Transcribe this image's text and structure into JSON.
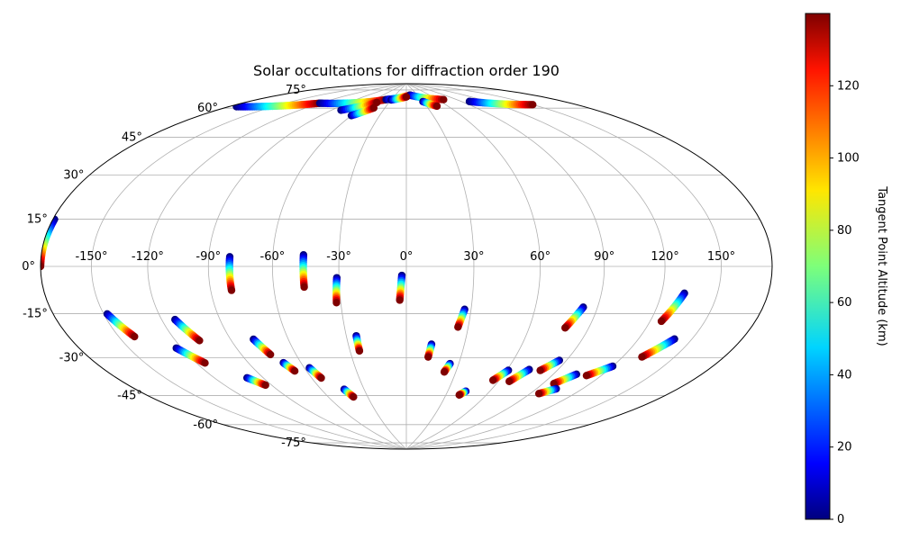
{
  "chart_data": {
    "type": "scatter",
    "projection": "hammer",
    "title": "Solar occultations for diffraction order 190",
    "grid": true,
    "lon_ticks": [
      {
        "value": -150,
        "label": "-150°"
      },
      {
        "value": -120,
        "label": "-120°"
      },
      {
        "value": -90,
        "label": "-90°"
      },
      {
        "value": -60,
        "label": "-60°"
      },
      {
        "value": -30,
        "label": "-30°"
      },
      {
        "value": 0,
        "label": "0°"
      },
      {
        "value": 30,
        "label": "30°"
      },
      {
        "value": 60,
        "label": "60°"
      },
      {
        "value": 90,
        "label": "90°"
      },
      {
        "value": 120,
        "label": "120°"
      },
      {
        "value": 150,
        "label": "150°"
      }
    ],
    "lat_ticks": [
      {
        "value": 75,
        "label": "75°"
      },
      {
        "value": 60,
        "label": "60°"
      },
      {
        "value": 45,
        "label": "45°"
      },
      {
        "value": 30,
        "label": "30°"
      },
      {
        "value": 15,
        "label": "15°"
      },
      {
        "value": 0,
        "label": "0°"
      },
      {
        "value": -15,
        "label": "-15°"
      },
      {
        "value": -30,
        "label": "-30°"
      },
      {
        "value": -45,
        "label": "-45°"
      },
      {
        "value": -60,
        "label": "-60°"
      },
      {
        "value": -75,
        "label": "-75°"
      }
    ],
    "colorbar": {
      "label": "Tangent Point Altitude (km)",
      "colormap": "jet",
      "range": [
        0,
        140
      ],
      "ticks": [
        {
          "value": 0,
          "label": "0"
        },
        {
          "value": 20,
          "label": "20"
        },
        {
          "value": 40,
          "label": "40"
        },
        {
          "value": 60,
          "label": "60"
        },
        {
          "value": 80,
          "label": "80"
        },
        {
          "value": 100,
          "label": "100"
        },
        {
          "value": 120,
          "label": "120"
        }
      ]
    },
    "tracks": [
      {
        "lon0": -179,
        "lat0": 15,
        "lon1": -180,
        "lat1": 0
      },
      {
        "lon0": -148,
        "lat0": -17,
        "lon1": -141,
        "lat1": -26
      },
      {
        "lon0": -123,
        "lat0": -32,
        "lon1": -115,
        "lat1": -39
      },
      {
        "lon0": -113,
        "lat0": -21,
        "lon1": -107,
        "lat1": -30
      },
      {
        "lon0": -100,
        "lat0": -47,
        "lon1": -94,
        "lat1": -51
      },
      {
        "lon0": -80,
        "lat0": 4,
        "lon1": -80,
        "lat1": -10
      },
      {
        "lon0": -78,
        "lat0": -31,
        "lon1": -74,
        "lat1": -38
      },
      {
        "lon0": -70,
        "lat0": -42,
        "lon1": -67,
        "lat1": -46
      },
      {
        "lon0": -57,
        "lat0": -45,
        "lon1": -54,
        "lat1": -50
      },
      {
        "lon0": -46,
        "lat0": 5,
        "lon1": -46,
        "lat1": -9
      },
      {
        "lon0": -44,
        "lat0": -56,
        "lon1": -41,
        "lat1": -60
      },
      {
        "lon0": -31,
        "lat0": -5,
        "lon1": -32,
        "lat1": -16
      },
      {
        "lon0": -25,
        "lat0": -31,
        "lon1": -25,
        "lat1": -38
      },
      {
        "lon0": -2,
        "lat0": -4,
        "lon1": -3,
        "lat1": -15
      },
      {
        "lon0": 13,
        "lat0": -35,
        "lon1": 12,
        "lat1": -41
      },
      {
        "lon0": 27,
        "lat0": -19,
        "lon1": 25,
        "lat1": -27
      },
      {
        "lon0": 25,
        "lat0": -44,
        "lon1": 23,
        "lat1": -48
      },
      {
        "lon0": 43,
        "lat0": -57,
        "lon1": 40,
        "lat1": -59
      },
      {
        "lon0": 61,
        "lat0": -46,
        "lon1": 56,
        "lat1": -51
      },
      {
        "lon0": 73,
        "lat0": -45,
        "lon1": 67,
        "lat1": -51
      },
      {
        "lon0": 83,
        "lat0": -17,
        "lon1": 78,
        "lat1": -26
      },
      {
        "lon0": 86,
        "lat0": -40,
        "lon1": 80,
        "lat1": -45
      },
      {
        "lon0": 104,
        "lat0": -45,
        "lon1": 97,
        "lat1": -50
      },
      {
        "lon0": 103,
        "lat0": -52,
        "lon1": 96,
        "lat1": -55
      },
      {
        "lon0": 120,
        "lat0": -40,
        "lon1": 111,
        "lat1": -45
      },
      {
        "lon0": 132,
        "lat0": -10,
        "lon1": 126,
        "lat1": -21
      },
      {
        "lon0": 140,
        "lat0": -27,
        "lon1": 131,
        "lat1": -35
      },
      {
        "lon0": -175,
        "lat0": 62,
        "lon1": -120,
        "lat1": 73
      },
      {
        "lon0": -120,
        "lat0": 73,
        "lon1": -40,
        "lat1": 80
      },
      {
        "lon0": -40,
        "lat0": 80,
        "lon1": 10,
        "lat1": 83
      },
      {
        "lon0": 10,
        "lat0": 83,
        "lon1": 70,
        "lat1": 79
      },
      {
        "lon0": 100,
        "lat0": 76,
        "lon1": 150,
        "lat1": 68
      },
      {
        "lon0": -80,
        "lat0": 72,
        "lon1": -50,
        "lat1": 78
      },
      {
        "lon0": -60,
        "lat0": 70,
        "lon1": -45,
        "lat1": 75
      },
      {
        "lon0": -30,
        "lat0": 80,
        "lon1": 0,
        "lat1": 82
      },
      {
        "lon0": 30,
        "lat0": 79,
        "lon1": 45,
        "lat1": 76
      }
    ]
  }
}
